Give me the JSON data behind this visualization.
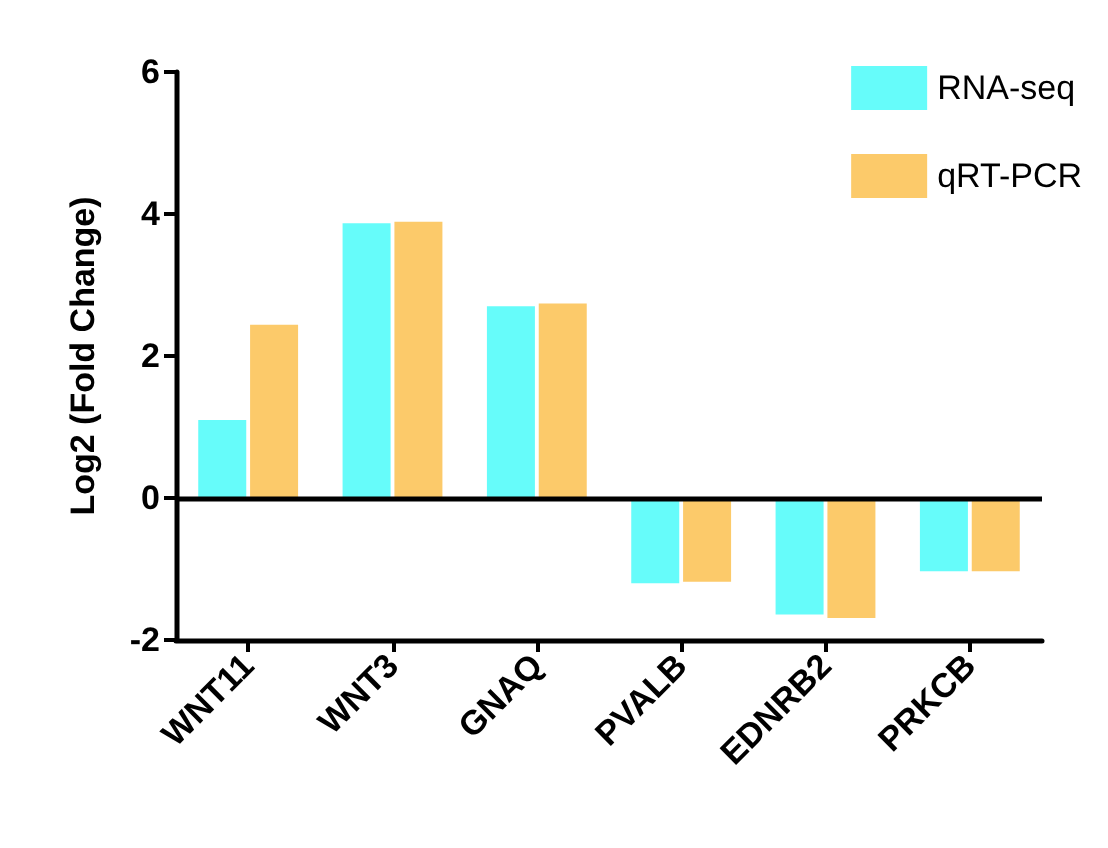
{
  "chart_data": {
    "type": "bar",
    "ylabel": "Log2 (Fold Change)",
    "categories": [
      "WNT11",
      "WNT3",
      "GNAQ",
      "PVALB",
      "EDNRB2",
      "PRKCB"
    ],
    "series": [
      {
        "name": "RNA-seq",
        "color": "#66fcfa",
        "values": [
          1.1,
          3.87,
          2.7,
          -1.2,
          -1.64,
          -1.03
        ]
      },
      {
        "name": "qRT-PCR",
        "color": "#fcca6a",
        "values": [
          2.44,
          3.89,
          2.74,
          -1.18,
          -1.69,
          -1.03
        ]
      }
    ],
    "ylim": [
      -2,
      6
    ],
    "yticks": [
      -2,
      0,
      2,
      4,
      6
    ],
    "grid": false,
    "legend": "top right",
    "ref_lines": [
      {
        "axis": "y",
        "value": 0,
        "color": "#000000"
      }
    ]
  }
}
